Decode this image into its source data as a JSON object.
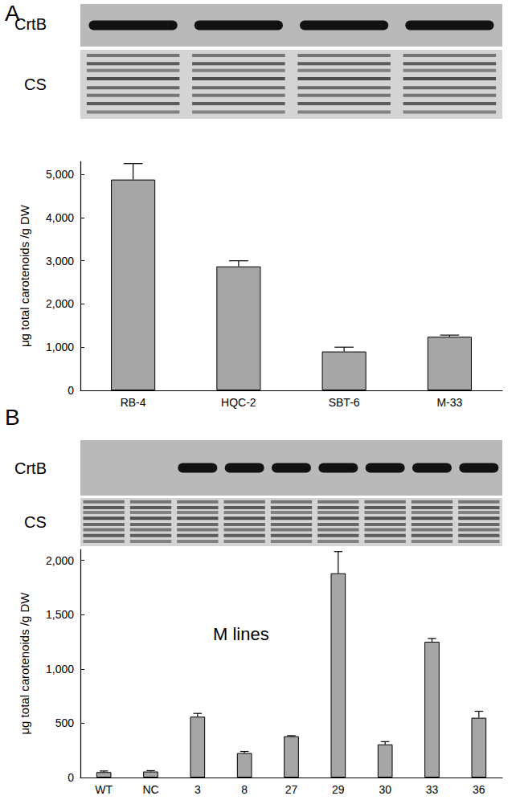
{
  "chart_data": [
    {
      "type": "bar",
      "title": "A",
      "annotations": [
        "CrtB",
        "CS"
      ],
      "y_label": "μg total carotenoids /g DW",
      "categories": [
        "RB-4",
        "HQC-2",
        "SBT-6",
        "M-33"
      ],
      "values": [
        4880,
        2870,
        900,
        1240
      ],
      "errors": [
        370,
        130,
        100,
        40
      ],
      "color": "#a6a6a6",
      "ylim": [
        0,
        5300
      ],
      "yticks": [
        0,
        1000,
        2000,
        3000,
        4000,
        5000
      ],
      "grid": false
    },
    {
      "type": "bar",
      "title": "B",
      "annotations": [
        "CrtB",
        "CS",
        "M lines"
      ],
      "y_label": "μg total carotenoids /g DW",
      "categories": [
        "WT",
        "NC",
        "3",
        "8",
        "27",
        "29",
        "30",
        "33",
        "36"
      ],
      "values": [
        50,
        55,
        560,
        225,
        380,
        1880,
        305,
        1250,
        550
      ],
      "errors": [
        10,
        8,
        30,
        15,
        5,
        200,
        25,
        30,
        60
      ],
      "color": "#a6a6a6",
      "ylim": [
        0,
        2100
      ],
      "yticks": [
        0,
        500,
        1000,
        1500,
        2000
      ],
      "grid": false
    }
  ]
}
